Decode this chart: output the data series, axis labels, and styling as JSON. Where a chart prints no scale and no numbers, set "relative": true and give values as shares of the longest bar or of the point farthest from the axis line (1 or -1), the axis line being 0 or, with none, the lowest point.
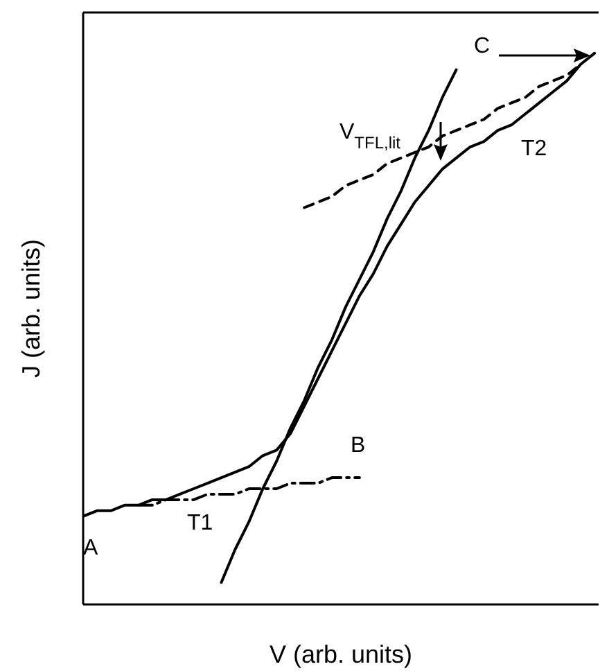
{
  "chart_data": {
    "type": "line",
    "relative": true,
    "xlabel": "V (arb. units)",
    "ylabel": "J (arb. units)",
    "marker": "none",
    "grid": false,
    "legend": false,
    "categories": [
      null,
      null,
      null,
      null,
      null,
      null,
      null,
      null,
      null,
      null,
      null,
      null,
      null,
      null,
      null,
      null,
      null,
      null,
      null,
      null,
      null,
      null,
      null,
      null,
      null,
      null,
      null,
      null,
      null,
      null,
      null,
      null,
      null,
      null,
      null,
      null,
      null,
      null
    ],
    "series": [
      {
        "color": "#000000",
        "line_style": "solid",
        "values": [
          0.16,
          0.17,
          0.17,
          0.18,
          0.18,
          0.19,
          0.19,
          0.2,
          0.21,
          0.22,
          0.23,
          0.24,
          0.25,
          0.27,
          0.28,
          0.31,
          0.36,
          0.41,
          0.46,
          0.51,
          0.56,
          0.6,
          0.65,
          0.69,
          0.73,
          0.76,
          0.79,
          0.81,
          0.83,
          0.84,
          0.86,
          0.87,
          0.89,
          0.91,
          0.93,
          0.95,
          0.98,
          1
        ]
      },
      {
        "color": "#000000",
        "line_style": "solid",
        "values": [
          null,
          null,
          null,
          null,
          null,
          null,
          null,
          null,
          null,
          null,
          0.04,
          0.1,
          0.15,
          0.21,
          0.26,
          0.32,
          0.37,
          0.43,
          0.48,
          0.54,
          0.59,
          0.64,
          0.7,
          0.75,
          0.81,
          0.86,
          0.92,
          0.97,
          null,
          null,
          null,
          null,
          null,
          null,
          null,
          null,
          null,
          null
        ]
      },
      {
        "color": "#000000",
        "line_style": "dashdot",
        "values": [
          null,
          null,
          null,
          null,
          0.18,
          0.18,
          0.19,
          0.19,
          0.19,
          0.2,
          0.2,
          0.2,
          0.21,
          0.21,
          0.21,
          0.22,
          0.22,
          0.22,
          0.23,
          0.23,
          0.23,
          null,
          null,
          null,
          null,
          null,
          null,
          null,
          null,
          null,
          null,
          null,
          null,
          null,
          null,
          null,
          null,
          null
        ]
      },
      {
        "color": "#000000",
        "line_style": "dashed",
        "values": [
          null,
          null,
          null,
          null,
          null,
          null,
          null,
          null,
          null,
          null,
          null,
          null,
          null,
          null,
          null,
          null,
          0.72,
          0.73,
          0.74,
          0.76,
          0.77,
          0.78,
          0.8,
          0.81,
          0.82,
          0.83,
          0.85,
          0.86,
          0.87,
          0.88,
          0.9,
          0.91,
          0.92,
          0.94,
          0.95,
          0.96,
          0.98,
          null
        ]
      }
    ],
    "annotations": [
      "A",
      "T1",
      "B",
      "T2",
      "C",
      "V$_{TFL,lit}$"
    ]
  }
}
